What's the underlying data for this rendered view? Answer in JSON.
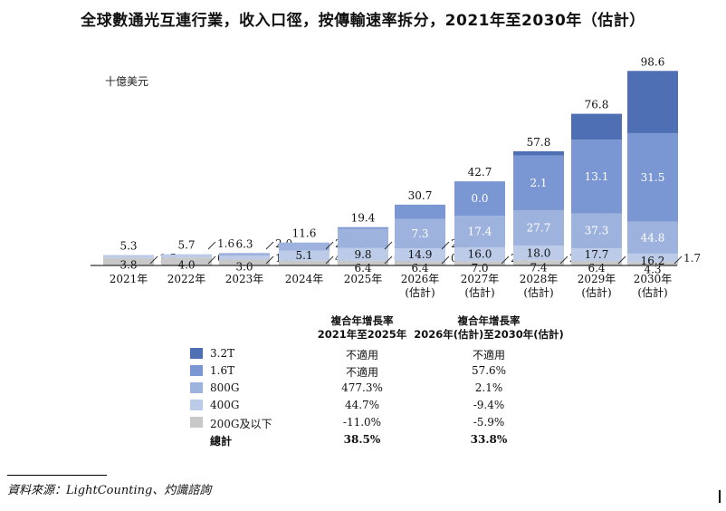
{
  "title": "全球數通光互連行業，收入口徑，按傳輸速率拆分，2021年至2030年（估計）",
  "unit_label": "十億美元",
  "chart_data": {
    "type": "bar",
    "stacked": true,
    "categories": [
      [
        "2021年"
      ],
      [
        "2022年"
      ],
      [
        "2023年"
      ],
      [
        "2024年"
      ],
      [
        "2025年"
      ],
      [
        "2026年",
        "(估計)"
      ],
      [
        "2027年",
        "(估計)"
      ],
      [
        "2028年",
        "(估計)"
      ],
      [
        "2029年",
        "(估計)"
      ],
      [
        "2030年",
        "(估計)"
      ]
    ],
    "series": [
      {
        "name": "200G及以下",
        "color": "#c8c8c8",
        "values": [
          3.8,
          4.0,
          3.0,
          2.4,
          2.4,
          2.2,
          2.2,
          2.6,
          2.3,
          1.7
        ]
      },
      {
        "name": "400G",
        "color": "#bccbe8",
        "values": [
          1.5,
          1.6,
          2.0,
          5.1,
          6.4,
          6.4,
          7.0,
          7.4,
          6.4,
          4.3
        ]
      },
      {
        "name": "800G",
        "color": "#9eb2de",
        "values": [
          0,
          0.1,
          1.3,
          4.1,
          9.8,
          14.9,
          16.0,
          18.0,
          17.7,
          16.2
        ]
      },
      {
        "name": "1.6T",
        "color": "#7b97d3",
        "values": [
          0,
          0,
          0,
          0,
          0.8,
          7.3,
          17.4,
          27.7,
          37.3,
          44.8
        ]
      },
      {
        "name": "3.2T",
        "color": "#4e6fb4",
        "values": [
          0,
          0,
          0,
          0,
          0,
          0.0,
          0.0,
          2.1,
          13.1,
          31.5
        ]
      }
    ],
    "totals": [
      5.3,
      5.7,
      6.3,
      11.6,
      19.4,
      30.7,
      42.7,
      57.8,
      76.8,
      98.6
    ],
    "inside_labels": [
      [
        "3.8",
        null,
        null,
        null,
        null
      ],
      [
        "4.0",
        null,
        null,
        null,
        null
      ],
      [
        "3.0",
        null,
        null,
        null,
        null
      ],
      [
        null,
        "5.1",
        null,
        null,
        null
      ],
      [
        "6.4",
        "9.8",
        null,
        null,
        null
      ],
      [
        "6.4",
        "14.9",
        "7.3",
        null,
        null
      ],
      [
        "7.0",
        "16.0",
        "17.4",
        "0.0",
        null
      ],
      [
        "7.4",
        "18.0",
        "27.7",
        "2.1",
        null
      ],
      [
        "6.4",
        "17.7",
        "37.3",
        "13.1",
        null
      ],
      [
        "4.3",
        "16.2",
        "44.8",
        "31.5",
        null
      ]
    ],
    "side_labels": [
      [
        "1.5"
      ],
      [
        "0.1",
        "1.6"
      ],
      [
        "1.3",
        "2.0"
      ],
      [
        "4.1",
        "2.4"
      ],
      [
        "0.8",
        "2.4"
      ],
      [
        "0.0",
        "2.2"
      ],
      [
        "2.2"
      ],
      [
        "2.6"
      ],
      [
        "2.3"
      ],
      [
        "1.7"
      ]
    ],
    "ylim": [
      0,
      100
    ]
  },
  "cagr_table": {
    "headers": [
      [
        "複合年增長率",
        "2021年至2025年"
      ],
      [
        "複合年增長率",
        "2026年(估計)至2030年(估計)"
      ]
    ],
    "rows": [
      {
        "label": "3.2T",
        "color": "#4e6fb4",
        "cagr1": "不適用",
        "cagr2": "不適用"
      },
      {
        "label": "1.6T",
        "color": "#7b97d3",
        "cagr1": "不適用",
        "cagr2": "57.6%"
      },
      {
        "label": "800G",
        "color": "#9eb2de",
        "cagr1": "477.3%",
        "cagr2": "2.1%"
      },
      {
        "label": "400G",
        "color": "#bccbe8",
        "cagr1": "44.7%",
        "cagr2": "-9.4%"
      },
      {
        "label": "200G及以下",
        "color": "#c8c8c8",
        "cagr1": "-11.0%",
        "cagr2": "-5.9%"
      }
    ],
    "total": {
      "label": "總計",
      "cagr1": "38.5%",
      "cagr2": "33.8%"
    }
  },
  "source": "資料來源：LightCounting、灼識諮詢"
}
